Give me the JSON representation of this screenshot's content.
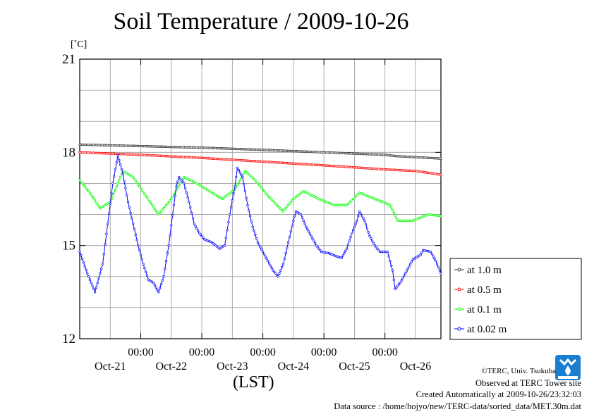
{
  "header": {
    "title": "Soil Temperature / 2009-10-26",
    "unit": "[˚C]"
  },
  "xaxis_caption": "(LST)",
  "credits": {
    "line1": "©TERC, Univ. Tsukuba",
    "line2": "Observed at TERC Tower site",
    "line3": "Created Automatically at 2009-10-26/23:32:03",
    "line4": "Data source : /home/hojyo/new/TERC-data/sorted_data/MET.30m.dat"
  },
  "logo": {
    "text": "TERC",
    "icon": "terc-logo-icon",
    "color": "#1a7fd0"
  },
  "chart_data": {
    "type": "line",
    "title": "Soil Temperature / 2009-10-26",
    "ylabel": "[˚C]",
    "xlabel": "(LST)",
    "ylim": [
      12,
      21
    ],
    "yticks": [
      12,
      15,
      18,
      21
    ],
    "xlim_hours": [
      0,
      142
    ],
    "xtick_labels": [
      "00:00",
      "00:00",
      "00:00",
      "00:00",
      "00:00"
    ],
    "xtick_hours": [
      24,
      48,
      72,
      96,
      120
    ],
    "date_labels": [
      "Oct-21",
      "Oct-22",
      "Oct-23",
      "Oct-24",
      "Oct-25",
      "Oct-26"
    ],
    "date_label_hours": [
      12,
      36,
      60,
      84,
      108,
      132
    ],
    "grid": true,
    "legend_position": "right",
    "series": [
      {
        "name": "at 1.0 m",
        "color": "#333333",
        "points": [
          [
            0,
            18.25
          ],
          [
            24,
            18.2
          ],
          [
            48,
            18.15
          ],
          [
            72,
            18.08
          ],
          [
            96,
            18.0
          ],
          [
            120,
            17.92
          ],
          [
            124,
            17.88
          ],
          [
            142,
            17.8
          ]
        ]
      },
      {
        "name": "at 0.5 m",
        "color": "#ff0000",
        "points": [
          [
            0,
            18.0
          ],
          [
            24,
            17.92
          ],
          [
            48,
            17.82
          ],
          [
            72,
            17.7
          ],
          [
            96,
            17.58
          ],
          [
            120,
            17.45
          ],
          [
            132,
            17.4
          ],
          [
            142,
            17.28
          ]
        ]
      },
      {
        "name": "at 0.1 m",
        "color": "#00ff00",
        "points": [
          [
            0,
            17.1
          ],
          [
            4,
            16.7
          ],
          [
            8,
            16.2
          ],
          [
            12,
            16.4
          ],
          [
            17,
            17.4
          ],
          [
            21,
            17.2
          ],
          [
            26,
            16.6
          ],
          [
            31,
            16.0
          ],
          [
            36,
            16.5
          ],
          [
            41,
            17.2
          ],
          [
            46,
            17.0
          ],
          [
            52,
            16.7
          ],
          [
            56,
            16.5
          ],
          [
            61,
            16.8
          ],
          [
            65,
            17.4
          ],
          [
            69,
            17.1
          ],
          [
            74,
            16.6
          ],
          [
            80,
            16.1
          ],
          [
            84,
            16.5
          ],
          [
            88,
            16.75
          ],
          [
            94,
            16.5
          ],
          [
            100,
            16.3
          ],
          [
            105,
            16.3
          ],
          [
            110,
            16.7
          ],
          [
            116,
            16.5
          ],
          [
            122,
            16.3
          ],
          [
            125,
            15.8
          ],
          [
            131,
            15.8
          ],
          [
            137,
            16.0
          ],
          [
            142,
            15.95
          ]
        ]
      },
      {
        "name": "at 0.02 m",
        "color": "#0000ff",
        "points": [
          [
            0,
            14.8
          ],
          [
            3,
            14.1
          ],
          [
            6,
            13.5
          ],
          [
            9,
            14.4
          ],
          [
            11,
            15.7
          ],
          [
            13,
            17.0
          ],
          [
            15,
            17.9
          ],
          [
            17,
            17.3
          ],
          [
            19,
            16.4
          ],
          [
            21,
            15.7
          ],
          [
            23,
            15.0
          ],
          [
            25,
            14.4
          ],
          [
            27,
            13.9
          ],
          [
            29,
            13.8
          ],
          [
            31,
            13.5
          ],
          [
            33,
            14.0
          ],
          [
            35,
            15.0
          ],
          [
            37,
            16.3
          ],
          [
            38,
            16.9
          ],
          [
            39,
            17.2
          ],
          [
            41,
            17.0
          ],
          [
            43,
            16.4
          ],
          [
            45,
            15.7
          ],
          [
            47,
            15.4
          ],
          [
            49,
            15.2
          ],
          [
            52,
            15.1
          ],
          [
            55,
            14.9
          ],
          [
            57,
            15.0
          ],
          [
            59,
            16.0
          ],
          [
            61,
            16.9
          ],
          [
            62,
            17.5
          ],
          [
            64,
            17.2
          ],
          [
            66,
            16.3
          ],
          [
            68,
            15.6
          ],
          [
            70,
            15.1
          ],
          [
            72,
            14.8
          ],
          [
            74,
            14.5
          ],
          [
            76,
            14.2
          ],
          [
            78,
            14.0
          ],
          [
            80,
            14.4
          ],
          [
            82,
            15.1
          ],
          [
            84,
            15.8
          ],
          [
            85,
            16.1
          ],
          [
            87,
            16.0
          ],
          [
            89,
            15.6
          ],
          [
            91,
            15.3
          ],
          [
            93,
            15.0
          ],
          [
            95,
            14.8
          ],
          [
            98,
            14.75
          ],
          [
            101,
            14.65
          ],
          [
            103,
            14.6
          ],
          [
            105,
            14.9
          ],
          [
            107,
            15.4
          ],
          [
            109,
            15.8
          ],
          [
            110,
            16.1
          ],
          [
            112,
            15.8
          ],
          [
            114,
            15.3
          ],
          [
            116,
            15.0
          ],
          [
            118,
            14.8
          ],
          [
            121,
            14.8
          ],
          [
            123,
            14.2
          ],
          [
            124,
            13.6
          ],
          [
            126,
            13.8
          ],
          [
            128,
            14.1
          ],
          [
            131,
            14.55
          ],
          [
            134,
            14.7
          ],
          [
            135,
            14.85
          ],
          [
            138,
            14.8
          ],
          [
            140,
            14.5
          ],
          [
            142,
            14.1
          ]
        ]
      }
    ]
  }
}
